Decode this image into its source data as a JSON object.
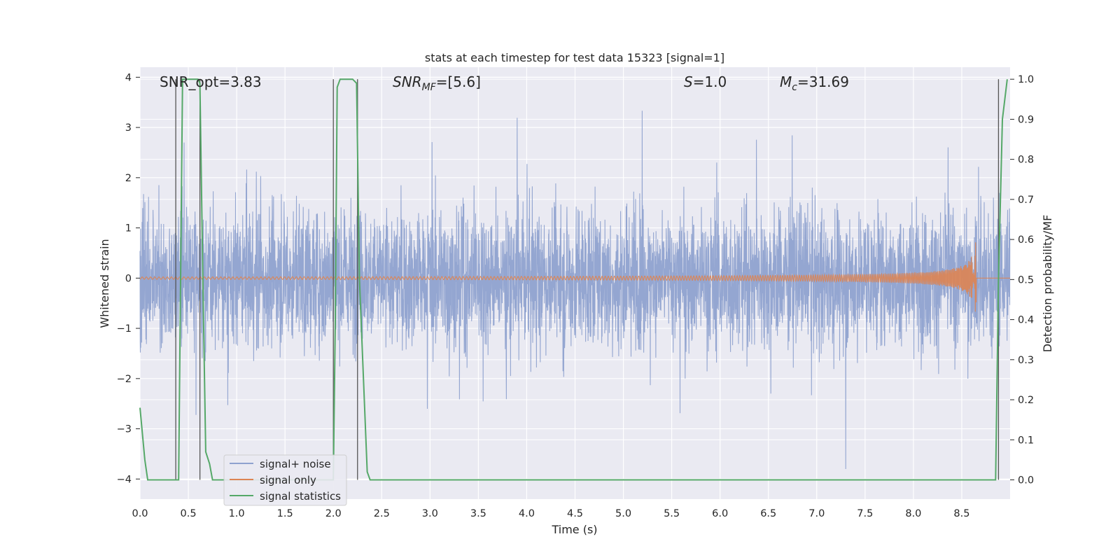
{
  "chart_data": {
    "type": "line",
    "title": "stats at each timestep for test data 15323 [signal=1]",
    "xlabel": "Time (s)",
    "ylabel": "Whitened strain",
    "ylabel_right": "Detection probability/MF",
    "xlim": [
      0.0,
      9.0
    ],
    "ylim": [
      -4.4,
      4.2
    ],
    "ylim_right": [
      -0.048,
      1.03
    ],
    "x_ticks": [
      "0.0",
      "0.5",
      "1.0",
      "1.5",
      "2.0",
      "2.5",
      "3.0",
      "3.5",
      "4.0",
      "4.5",
      "5.0",
      "5.5",
      "6.0",
      "6.5",
      "7.0",
      "7.5",
      "8.0",
      "8.5"
    ],
    "y_ticks": [
      "−4",
      "−3",
      "−2",
      "−1",
      "0",
      "1",
      "2",
      "3",
      "4"
    ],
    "y_right_ticks": [
      "0.0",
      "0.1",
      "0.2",
      "0.3",
      "0.4",
      "0.5",
      "0.6",
      "0.7",
      "0.8",
      "0.9",
      "1.0"
    ],
    "grid": true,
    "legend_position": "lower-left",
    "annotations": [
      {
        "id": "snr_opt",
        "text": "SNR_opt=3.83",
        "x": 0.2,
        "y": 3.83
      },
      {
        "id": "snr_mf",
        "text": "SNR_MF=[5.6]",
        "x": 2.6,
        "y": 3.83
      },
      {
        "id": "s",
        "text": "S=1.0",
        "x": 5.6,
        "y": 3.83
      },
      {
        "id": "mc",
        "text": "M_c=31.69",
        "x": 6.6,
        "y": 3.83
      }
    ],
    "series": [
      {
        "name": "signal+ noise",
        "color": "#8fa2cf",
        "kind": "noise",
        "sample_rate_hz": 512,
        "amplitude_envelope": 3.8
      },
      {
        "name": "signal only",
        "color": "#dd8452",
        "kind": "chirp",
        "baseline": 0.0,
        "merger_time": 8.65,
        "peak_amplitude": 0.9
      },
      {
        "name": "signal statistics",
        "color": "#55a868",
        "axis": "right",
        "x": [
          0.0,
          0.05,
          0.08,
          0.15,
          0.3,
          0.36,
          0.4,
          0.44,
          0.6,
          0.62,
          0.65,
          0.68,
          0.72,
          0.75,
          2.0,
          2.02,
          2.04,
          2.07,
          2.2,
          2.24,
          2.27,
          2.35,
          2.38,
          2.4,
          8.85,
          8.88,
          8.92,
          8.97
        ],
        "y": [
          0.18,
          0.05,
          0.0,
          0.0,
          0.0,
          0.0,
          0.0,
          1.0,
          1.0,
          0.99,
          0.5,
          0.07,
          0.04,
          0.0,
          0.0,
          0.4,
          0.98,
          1.0,
          1.0,
          0.99,
          0.5,
          0.02,
          0.0,
          0.0,
          0.0,
          0.5,
          0.9,
          1.0
        ]
      }
    ],
    "vertical_markers": [
      0.37,
      0.62,
      2.0,
      2.25,
      8.88
    ]
  }
}
